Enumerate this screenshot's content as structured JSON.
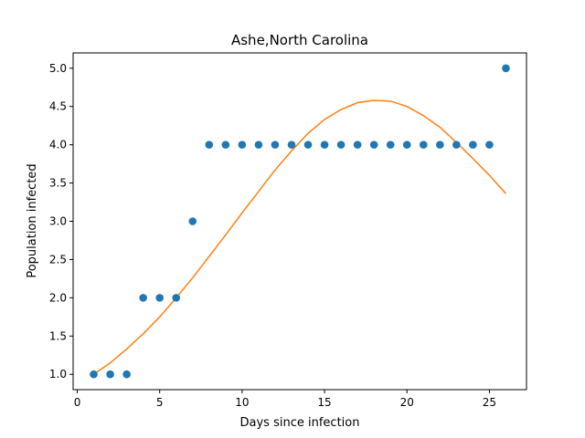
{
  "chart_data": {
    "type": "scatter",
    "title": "Ashe,North Carolina",
    "xlabel": "Days since infection",
    "ylabel": "Population infected",
    "xlim": [
      -0.25,
      27.25
    ],
    "ylim": [
      0.8,
      5.2
    ],
    "xticks": [
      0,
      5,
      10,
      15,
      20,
      25
    ],
    "yticks": [
      1.0,
      1.5,
      2.0,
      2.5,
      3.0,
      3.5,
      4.0,
      4.5,
      5.0
    ],
    "grid": false,
    "series": [
      {
        "kind": "scatter",
        "color": "#1f77b4",
        "x": [
          1,
          2,
          3,
          4,
          5,
          6,
          7,
          8,
          9,
          10,
          11,
          12,
          13,
          14,
          15,
          16,
          17,
          18,
          19,
          20,
          21,
          22,
          23,
          24,
          25,
          26
        ],
        "y": [
          1,
          1,
          1,
          2,
          2,
          2,
          3,
          4,
          4,
          4,
          4,
          4,
          4,
          4,
          4,
          4,
          4,
          4,
          4,
          4,
          4,
          4,
          4,
          4,
          4,
          5
        ]
      },
      {
        "kind": "line",
        "color": "#ff7f0e",
        "x": [
          1,
          2,
          3,
          4,
          5,
          6,
          7,
          8,
          9,
          10,
          11,
          12,
          13,
          14,
          15,
          16,
          17,
          18,
          19,
          20,
          21,
          22,
          23,
          24,
          25,
          26
        ],
        "y": [
          1.0,
          1.15,
          1.33,
          1.53,
          1.75,
          2.0,
          2.26,
          2.54,
          2.82,
          3.11,
          3.39,
          3.67,
          3.92,
          4.15,
          4.33,
          4.46,
          4.55,
          4.58,
          4.57,
          4.5,
          4.38,
          4.23,
          4.03,
          3.82,
          3.6,
          3.36
        ]
      }
    ]
  }
}
